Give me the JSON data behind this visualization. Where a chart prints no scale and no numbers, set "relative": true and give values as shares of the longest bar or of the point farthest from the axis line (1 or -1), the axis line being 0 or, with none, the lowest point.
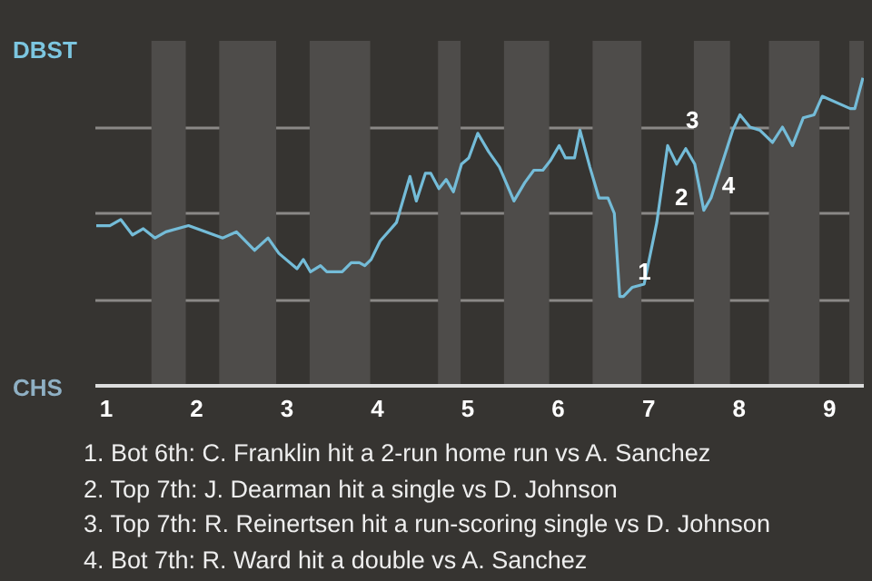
{
  "chart_data": {
    "type": "line",
    "relative": true,
    "x": [
      0.89,
      1.04,
      1.16,
      1.29,
      1.41,
      1.54,
      1.66,
      1.91,
      2.29,
      2.44,
      2.64,
      2.79,
      2.91,
      3.11,
      3.18,
      3.26,
      3.37,
      3.44,
      3.61,
      3.71,
      3.8,
      3.86,
      3.93,
      4.03,
      4.21,
      4.36,
      4.43,
      4.53,
      4.59,
      4.68,
      4.76,
      4.84,
      4.93,
      5.01,
      5.11,
      5.23,
      5.35,
      5.51,
      5.63,
      5.73,
      5.83,
      5.91,
      6.01,
      6.08,
      6.18,
      6.24,
      6.35,
      6.45,
      6.55,
      6.62,
      6.68,
      6.72,
      6.82,
      6.95,
      7.09,
      7.21,
      7.31,
      7.41,
      7.51,
      7.61,
      7.69,
      7.93,
      8.01,
      8.12,
      8.23,
      8.37,
      8.48,
      8.59,
      8.71,
      8.83,
      8.92,
      9.23,
      9.28,
      9.37
    ],
    "series": [
      {
        "color": "#74bcd8",
        "values": [
          0.52,
          0.52,
          0.54,
          0.49,
          0.51,
          0.48,
          0.5,
          0.52,
          0.48,
          0.5,
          0.44,
          0.48,
          0.43,
          0.38,
          0.41,
          0.37,
          0.39,
          0.37,
          0.37,
          0.4,
          0.4,
          0.39,
          0.41,
          0.47,
          0.53,
          0.68,
          0.6,
          0.69,
          0.69,
          0.64,
          0.67,
          0.63,
          0.72,
          0.74,
          0.82,
          0.76,
          0.71,
          0.6,
          0.66,
          0.7,
          0.7,
          0.73,
          0.78,
          0.74,
          0.74,
          0.83,
          0.71,
          0.61,
          0.61,
          0.56,
          0.29,
          0.29,
          0.32,
          0.33,
          0.53,
          0.78,
          0.72,
          0.77,
          0.72,
          0.57,
          0.61,
          0.83,
          0.88,
          0.84,
          0.83,
          0.79,
          0.84,
          0.78,
          0.87,
          0.88,
          0.94,
          0.9,
          0.9,
          1
        ]
      }
    ],
    "xlim": [
      0.88,
      9.38
    ],
    "xticks": [
      1,
      2,
      3,
      4,
      5,
      6,
      7,
      8,
      9
    ],
    "grid": "y",
    "marker": "none",
    "line_style": "solid",
    "bands": [
      {
        "axis": "x",
        "from": 1.5,
        "to": 1.88,
        "color": "#4e4c4a"
      },
      {
        "axis": "x",
        "from": 2.25,
        "to": 2.88,
        "color": "#4e4c4a"
      },
      {
        "axis": "x",
        "from": 3.25,
        "to": 3.92,
        "color": "#4e4c4a"
      },
      {
        "axis": "x",
        "from": 4.67,
        "to": 4.92,
        "color": "#4e4c4a"
      },
      {
        "axis": "x",
        "from": 5.4,
        "to": 5.9,
        "color": "#4e4c4a"
      },
      {
        "axis": "x",
        "from": 6.38,
        "to": 6.92,
        "color": "#4e4c4a"
      },
      {
        "axis": "x",
        "from": 7.5,
        "to": 7.9,
        "color": "#4e4c4a"
      },
      {
        "axis": "x",
        "from": 8.33,
        "to": 8.89,
        "color": "#4e4c4a"
      },
      {
        "axis": "x",
        "from": 9.22,
        "to": 9.38,
        "color": "#4e4c4a"
      }
    ],
    "annotations": [
      "DBST",
      "CHS",
      {
        "text": "1",
        "x": 6.68,
        "y": 0.29
      },
      {
        "text": "2",
        "x": 7.09,
        "y": 0.53
      },
      {
        "text": "3",
        "x": 7.21,
        "y": 0.78
      },
      {
        "text": "4",
        "x": 7.61,
        "y": 0.57
      },
      "1. Bot 6th: C. Franklin hit a 2-run home run vs A. Sanchez",
      "2. Top 7th: J. Dearman hit a single vs D. Johnson",
      "3. Top 7th: R. Reinertsen hit a run-scoring single vs D. Johnson",
      "4. Bot 7th: R. Ward hit a double vs A. Sanchez"
    ]
  }
}
